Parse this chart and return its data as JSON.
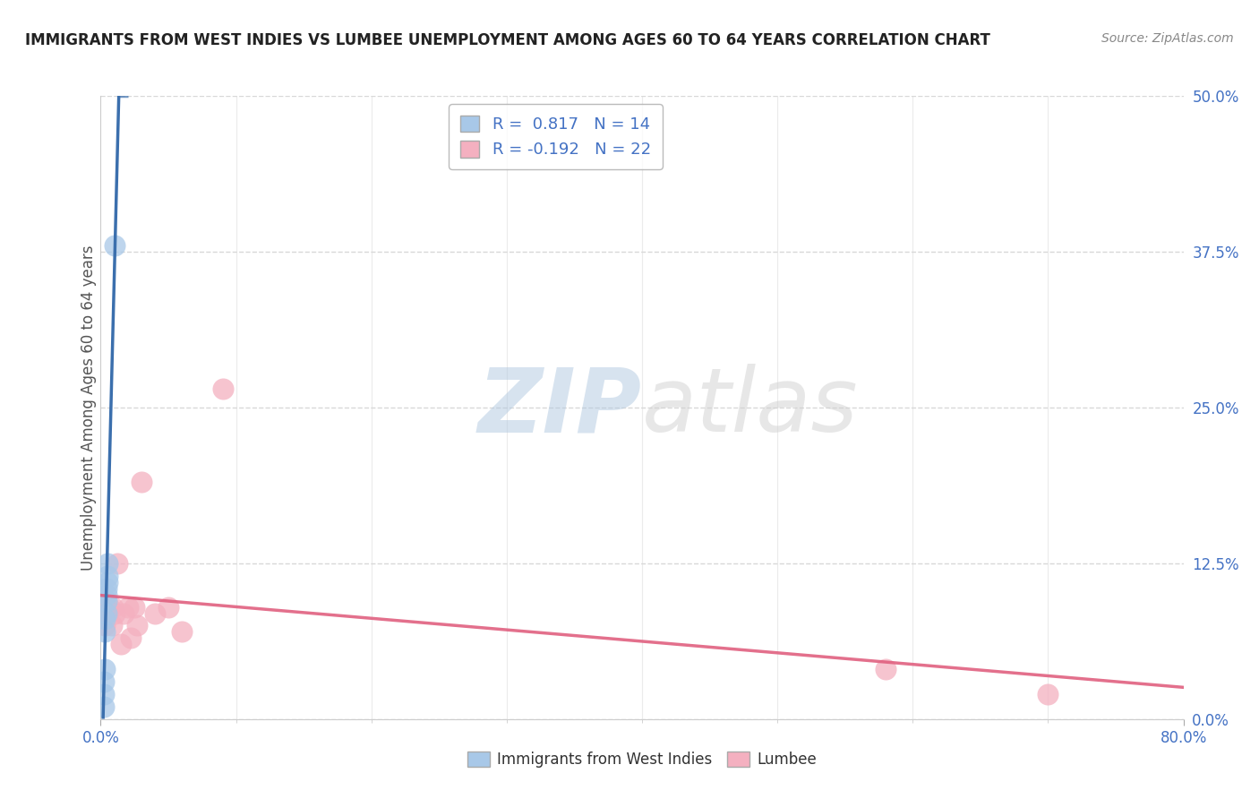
{
  "title": "IMMIGRANTS FROM WEST INDIES VS LUMBEE UNEMPLOYMENT AMONG AGES 60 TO 64 YEARS CORRELATION CHART",
  "source": "Source: ZipAtlas.com",
  "xlabel": "",
  "ylabel": "Unemployment Among Ages 60 to 64 years",
  "xlim": [
    0,
    0.8
  ],
  "ylim": [
    0,
    0.5
  ],
  "xtick_positions": [
    0.0,
    0.8
  ],
  "xtick_labels": [
    "0.0%",
    "80.0%"
  ],
  "yticks_right": [
    0.0,
    0.125,
    0.25,
    0.375,
    0.5
  ],
  "ytick_labels_right": [
    "0.0%",
    "12.5%",
    "25.0%",
    "37.5%",
    "50.0%"
  ],
  "blue_R": "0.817",
  "blue_N": "14",
  "pink_R": "-0.192",
  "pink_N": "22",
  "legend_label_blue": "Immigrants from West Indies",
  "legend_label_pink": "Lumbee",
  "blue_color": "#a8c8e8",
  "blue_line_color": "#3b6fad",
  "pink_color": "#f4b0c0",
  "pink_line_color": "#e06080",
  "watermark_zip": "ZIP",
  "watermark_atlas": "atlas",
  "blue_points_x": [
    0.002,
    0.002,
    0.002,
    0.003,
    0.003,
    0.003,
    0.004,
    0.004,
    0.004,
    0.004,
    0.005,
    0.005,
    0.005,
    0.01
  ],
  "blue_points_y": [
    0.01,
    0.02,
    0.03,
    0.04,
    0.07,
    0.08,
    0.085,
    0.095,
    0.1,
    0.105,
    0.11,
    0.115,
    0.125,
    0.38
  ],
  "pink_points_x": [
    0.002,
    0.003,
    0.003,
    0.005,
    0.006,
    0.008,
    0.009,
    0.01,
    0.012,
    0.015,
    0.017,
    0.02,
    0.022,
    0.025,
    0.027,
    0.03,
    0.04,
    0.05,
    0.06,
    0.09,
    0.58,
    0.7
  ],
  "pink_points_y": [
    0.085,
    0.075,
    0.085,
    0.09,
    0.09,
    0.075,
    0.09,
    0.085,
    0.125,
    0.06,
    0.085,
    0.09,
    0.065,
    0.09,
    0.075,
    0.19,
    0.085,
    0.09,
    0.07,
    0.265,
    0.04,
    0.02
  ],
  "background_color": "#ffffff",
  "grid_color": "#d8d8d8"
}
